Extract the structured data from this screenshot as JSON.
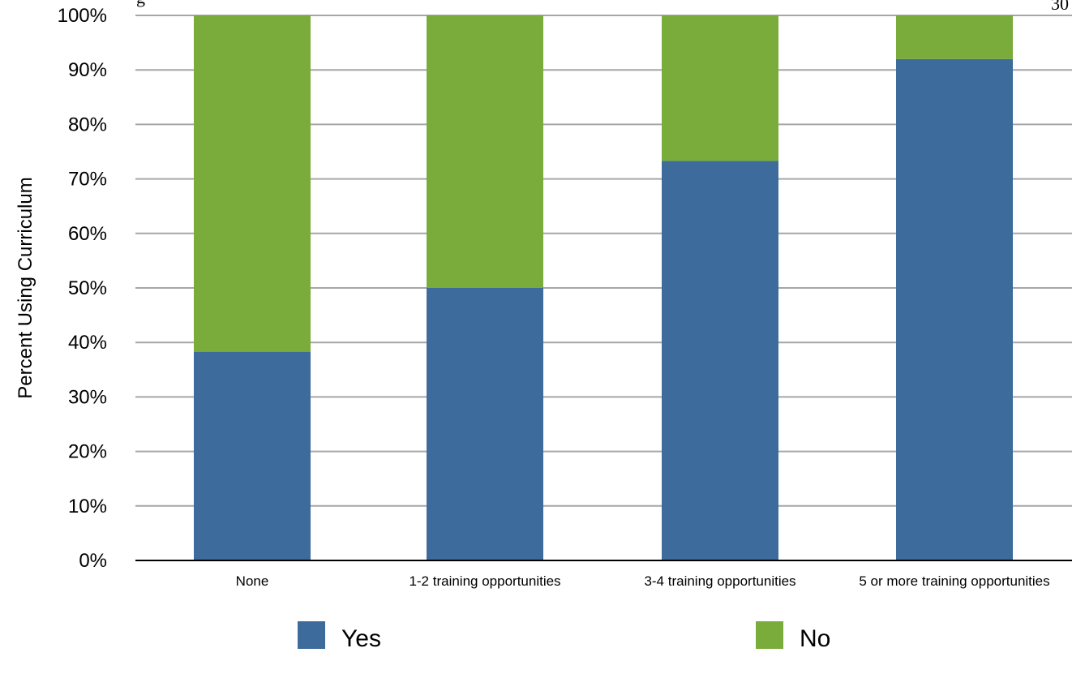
{
  "page": {
    "corner_text_left": "g",
    "corner_text_right": "30"
  },
  "chart_data": {
    "type": "bar",
    "stacked": true,
    "categories": [
      "None",
      "1-2 training opportunities",
      "3-4 training opportunities",
      "5 or more training opportunities"
    ],
    "series": [
      {
        "name": "Yes",
        "color": "#3d6b9b",
        "values": [
          38.3,
          50,
          73.3,
          92
        ]
      },
      {
        "name": "No",
        "color": "#7aac3b",
        "values": [
          61.7,
          50,
          26.7,
          8
        ]
      }
    ],
    "ylabel": "Percent Using Curriculum",
    "xlabel": "",
    "ylim": [
      0,
      100
    ],
    "yticks": [
      "0%",
      "10%",
      "20%",
      "30%",
      "40%",
      "50%",
      "60%",
      "70%",
      "80%",
      "90%",
      "100%"
    ],
    "grid": true,
    "legend_position": "bottom"
  }
}
